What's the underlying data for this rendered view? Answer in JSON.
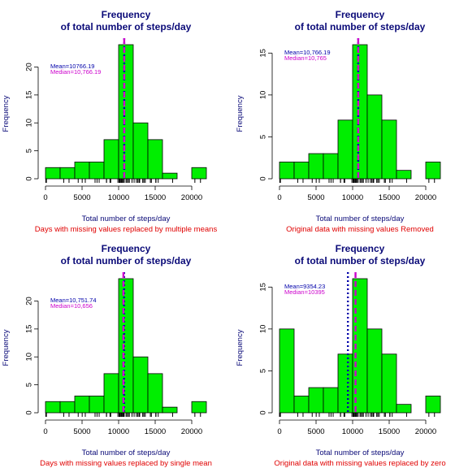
{
  "chart_data": [
    {
      "type": "bar",
      "title_line1": "Frequency",
      "title_line2": "of total number of steps/day",
      "xlabel": "Total number of steps/day",
      "ylabel": "Frequency",
      "subtitle": "Days with missing values replaced by multiple means",
      "bin_width": 2000,
      "bin_starts": [
        0,
        2000,
        4000,
        6000,
        8000,
        10000,
        12000,
        14000,
        16000,
        18000,
        20000
      ],
      "values": [
        2,
        2,
        3,
        3,
        7,
        24,
        10,
        7,
        1,
        0,
        2
      ],
      "xlim": [
        0,
        22000
      ],
      "ylim": [
        0,
        24
      ],
      "xticks": [
        0,
        5000,
        10000,
        15000,
        20000
      ],
      "yticks": [
        0,
        5,
        10,
        15,
        20
      ],
      "mean_value": 10766.19,
      "median_value": 10766.19,
      "mean_label": "Mean=10766.19",
      "median_label": "Median=10,766.19",
      "rug": [
        41,
        126,
        2492,
        3219,
        4472,
        5018,
        5441,
        6778,
        7047,
        7336,
        8334,
        8355,
        8821,
        8918,
        9900,
        10056,
        10119,
        10139,
        10183,
        10304,
        10395,
        10439,
        10571,
        10600,
        10765,
        10766,
        11015,
        11162,
        11352,
        11458,
        11829,
        11834,
        12116,
        12426,
        12608,
        12787,
        12811,
        12883,
        13294,
        13452,
        13460,
        13646,
        14339,
        14478,
        15084,
        15098,
        15110,
        15414,
        17382,
        20427,
        21194
      ],
      "color_bar": "#00ee00",
      "color_mean": "#0000aa",
      "color_median": "#cc00cc"
    },
    {
      "type": "bar",
      "title_line1": "Frequency",
      "title_line2": "of total number of steps/day",
      "xlabel": "Total number of steps/day",
      "ylabel": "Frequency",
      "subtitle": "Original data with missing values Removed",
      "bin_width": 2000,
      "bin_starts": [
        0,
        2000,
        4000,
        6000,
        8000,
        10000,
        12000,
        14000,
        16000,
        18000,
        20000
      ],
      "values": [
        2,
        2,
        3,
        3,
        7,
        16,
        10,
        7,
        1,
        0,
        2
      ],
      "xlim": [
        0,
        22000
      ],
      "ylim": [
        0,
        16
      ],
      "xticks": [
        0,
        5000,
        10000,
        15000,
        20000
      ],
      "yticks": [
        0,
        5,
        10,
        15
      ],
      "mean_value": 10766.19,
      "median_value": 10765,
      "mean_label": "Mean=10,766.19",
      "median_label": "Median=10,765",
      "rug": [
        41,
        126,
        2492,
        3219,
        4472,
        5018,
        5441,
        6778,
        7047,
        7336,
        8334,
        8355,
        8821,
        8918,
        9900,
        10056,
        10119,
        10139,
        10183,
        10304,
        10395,
        10439,
        10571,
        10600,
        10765,
        11015,
        11162,
        11352,
        11458,
        11829,
        11834,
        12116,
        12426,
        12608,
        12787,
        12811,
        12883,
        13294,
        13452,
        13460,
        13646,
        14339,
        14478,
        15084,
        15098,
        15110,
        15414,
        17382,
        20427,
        21194
      ],
      "color_bar": "#00ee00",
      "color_mean": "#0000aa",
      "color_median": "#cc00cc"
    },
    {
      "type": "bar",
      "title_line1": "Frequency",
      "title_line2": "of total number of steps/day",
      "xlabel": "Total number of steps/day",
      "ylabel": "Frequency",
      "subtitle": "Days with missing values replaced by single mean",
      "bin_width": 2000,
      "bin_starts": [
        0,
        2000,
        4000,
        6000,
        8000,
        10000,
        12000,
        14000,
        16000,
        18000,
        20000
      ],
      "values": [
        2,
        2,
        3,
        3,
        7,
        24,
        10,
        7,
        1,
        0,
        2
      ],
      "xlim": [
        0,
        22000
      ],
      "ylim": [
        0,
        24
      ],
      "xticks": [
        0,
        5000,
        10000,
        15000,
        20000
      ],
      "yticks": [
        0,
        5,
        10,
        15,
        20
      ],
      "mean_value": 10751.74,
      "median_value": 10656,
      "mean_label": "Mean=10,751.74",
      "median_label": "Median=10,656",
      "rug": [
        41,
        126,
        2492,
        3219,
        4472,
        5018,
        5441,
        6778,
        7047,
        7336,
        8334,
        8355,
        8821,
        8918,
        9900,
        10056,
        10119,
        10139,
        10183,
        10304,
        10395,
        10439,
        10571,
        10600,
        10656,
        10765,
        11015,
        11162,
        11352,
        11458,
        11829,
        11834,
        12116,
        12426,
        12608,
        12787,
        12811,
        12883,
        13294,
        13452,
        13460,
        13646,
        14339,
        14478,
        15084,
        15098,
        15110,
        15414,
        17382,
        20427,
        21194
      ],
      "color_bar": "#00ee00",
      "color_mean": "#0000aa",
      "color_median": "#cc00cc"
    },
    {
      "type": "bar",
      "title_line1": "Frequency",
      "title_line2": "of total number of steps/day",
      "xlabel": "Total number of steps/day",
      "ylabel": "Frequency",
      "subtitle": "Original data with missing values replaced by zero",
      "bin_width": 2000,
      "bin_starts": [
        0,
        2000,
        4000,
        6000,
        8000,
        10000,
        12000,
        14000,
        16000,
        18000,
        20000
      ],
      "values": [
        10,
        2,
        3,
        3,
        7,
        16,
        10,
        7,
        1,
        0,
        2
      ],
      "xlim": [
        0,
        22000
      ],
      "ylim": [
        0,
        16
      ],
      "xticks": [
        0,
        5000,
        10000,
        15000,
        20000
      ],
      "yticks": [
        0,
        5,
        10,
        15
      ],
      "mean_value": 9354.23,
      "median_value": 10395,
      "mean_label": "Mean=9354.23",
      "median_label": "Median=10395",
      "rug": [
        0,
        41,
        126,
        2492,
        3219,
        4472,
        5018,
        5441,
        6778,
        7047,
        7336,
        8334,
        8355,
        8821,
        8918,
        9900,
        10056,
        10119,
        10139,
        10183,
        10304,
        10395,
        10439,
        10571,
        10600,
        10765,
        11015,
        11162,
        11352,
        11458,
        11829,
        11834,
        12116,
        12426,
        12608,
        12787,
        12811,
        12883,
        13294,
        13452,
        13460,
        13646,
        14339,
        14478,
        15084,
        15098,
        15110,
        15414,
        17382,
        20427,
        21194
      ],
      "color_bar": "#00ee00",
      "color_mean": "#0000aa",
      "color_median": "#cc00cc"
    }
  ]
}
